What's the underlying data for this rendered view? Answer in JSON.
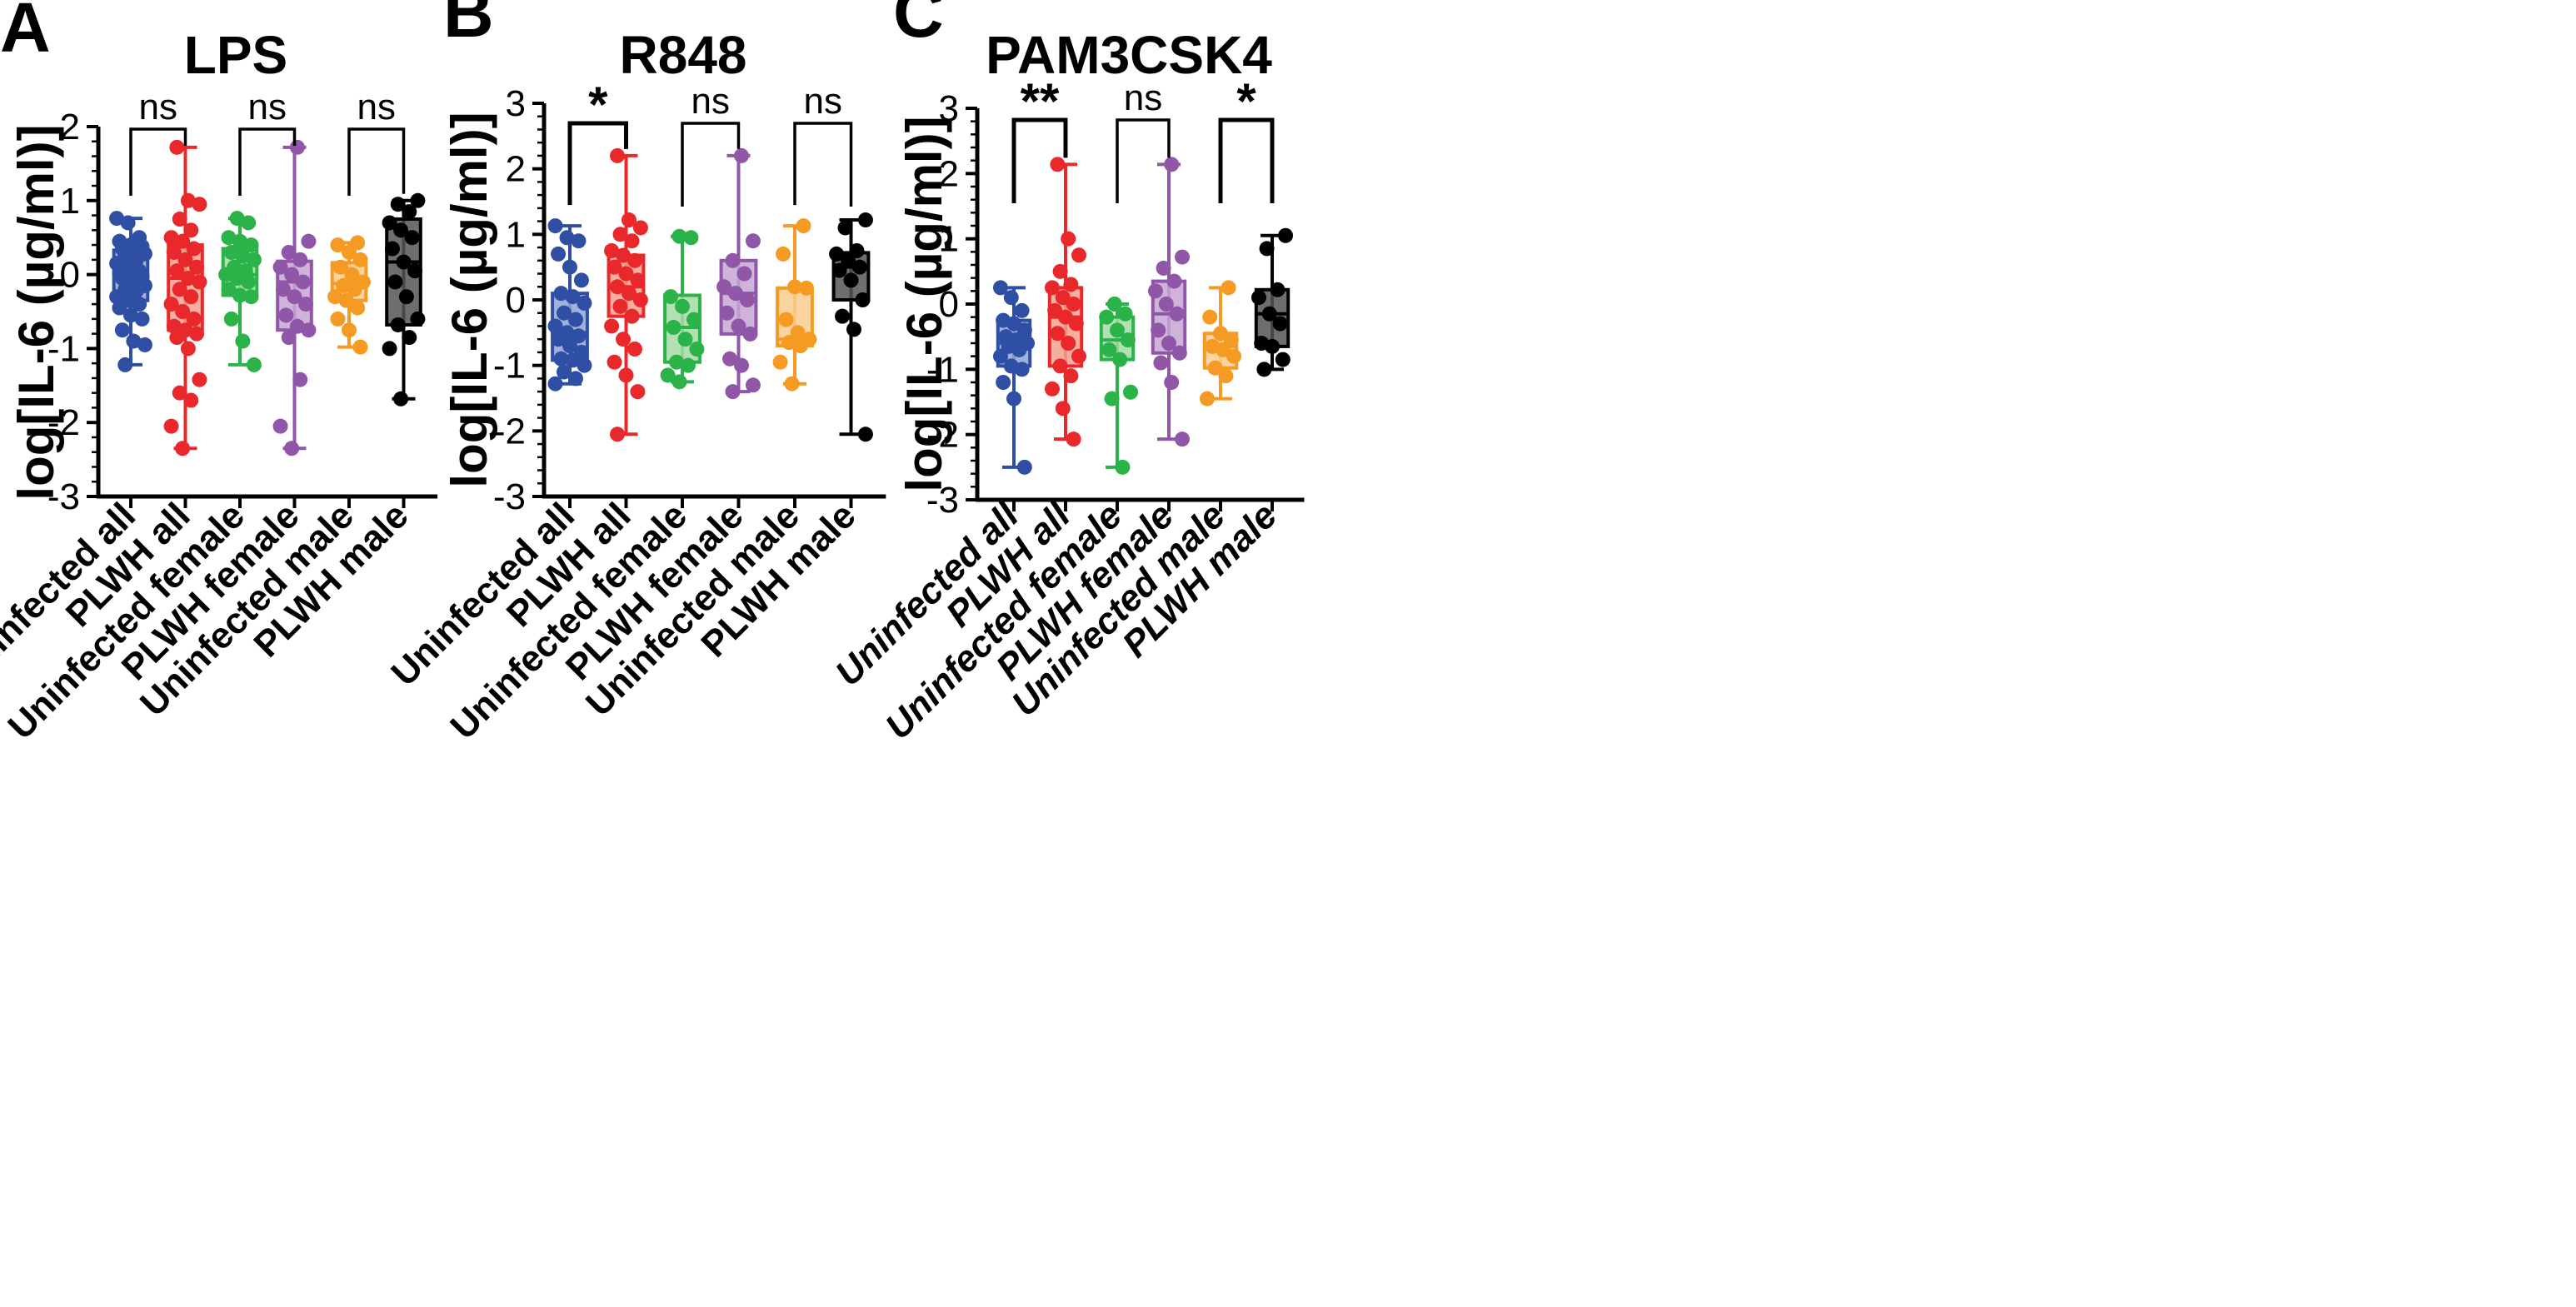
{
  "chart_data": [
    {
      "type": "box",
      "panel_label": "A",
      "title": "LPS",
      "ylabel": "log[IL-6 (µg/ml)]",
      "ylim": [
        -3,
        2
      ],
      "yticks": [
        "-3",
        "-2",
        "-1",
        "0",
        "1",
        "2"
      ],
      "categories": [
        "Uninfected all",
        "PLWH all",
        "Uninfected female",
        "PLWH female",
        "Uninfected male",
        "PLWH male"
      ],
      "italic_categories": false,
      "comparisons": [
        {
          "groups": [
            0,
            1
          ],
          "label": "ns"
        },
        {
          "groups": [
            2,
            3
          ],
          "label": "ns"
        },
        {
          "groups": [
            4,
            5
          ],
          "label": "ns"
        }
      ],
      "series": [
        {
          "name": "Uninfected all",
          "color": "#2e4fa3",
          "fill": "#8fa3d6",
          "min": -1.22,
          "q1": -0.35,
          "median": -0.03,
          "q3": 0.33,
          "max": 0.76,
          "points": [
            0.76,
            0.7,
            0.5,
            0.45,
            0.4,
            0.38,
            0.35,
            0.3,
            0.28,
            0.25,
            0.2,
            0.15,
            0.1,
            0.05,
            0.02,
            0.0,
            -0.03,
            -0.05,
            -0.1,
            -0.15,
            -0.2,
            -0.22,
            -0.3,
            -0.35,
            -0.4,
            -0.45,
            -0.55,
            -0.6,
            -0.75,
            -0.9,
            -0.95,
            -1.22
          ]
        },
        {
          "name": "PLWH all",
          "color": "#e8282b",
          "fill": "#f3a08e",
          "min": -2.35,
          "q1": -0.75,
          "median": -0.05,
          "q3": 0.4,
          "max": 1.72,
          "points": [
            1.72,
            1.0,
            0.95,
            0.75,
            0.6,
            0.5,
            0.45,
            0.35,
            0.3,
            0.2,
            0.1,
            0.05,
            -0.05,
            -0.1,
            -0.2,
            -0.3,
            -0.4,
            -0.5,
            -0.6,
            -0.7,
            -0.75,
            -0.8,
            -0.85,
            -1.0,
            -1.42,
            -1.6,
            -1.7,
            -2.05,
            -2.35
          ]
        },
        {
          "name": "Uninfected female",
          "color": "#2bb34a",
          "fill": "#a6dba5",
          "min": -1.22,
          "q1": -0.28,
          "median": 0.0,
          "q3": 0.35,
          "max": 0.76,
          "points": [
            0.76,
            0.7,
            0.5,
            0.45,
            0.4,
            0.3,
            0.25,
            0.2,
            0.1,
            0.05,
            0.0,
            -0.05,
            -0.1,
            -0.2,
            -0.28,
            -0.3,
            -0.6,
            -0.9,
            -1.22
          ]
        },
        {
          "name": "PLWH female",
          "color": "#9056a8",
          "fill": "#c7a7d3",
          "min": -2.35,
          "q1": -0.75,
          "median": -0.1,
          "q3": 0.18,
          "max": 1.72,
          "points": [
            1.72,
            0.45,
            0.3,
            0.2,
            0.1,
            0.0,
            -0.1,
            -0.2,
            -0.3,
            -0.4,
            -0.55,
            -0.7,
            -0.75,
            -0.85,
            -1.42,
            -2.05,
            -2.35
          ]
        },
        {
          "name": "Uninfected male",
          "color": "#f59a23",
          "fill": "#f9cc8f",
          "min": -0.98,
          "q1": -0.35,
          "median": -0.12,
          "q3": 0.16,
          "max": 0.43,
          "points": [
            0.43,
            0.4,
            0.3,
            0.2,
            0.1,
            0.0,
            -0.1,
            -0.15,
            -0.2,
            -0.3,
            -0.35,
            -0.45,
            -0.6,
            -0.75,
            -0.98
          ]
        },
        {
          "name": "PLWH male",
          "color": "#000000",
          "fill": "#555555",
          "min": -1.68,
          "q1": -0.68,
          "median": 0.17,
          "q3": 0.75,
          "max": 1.0,
          "points": [
            1.0,
            0.95,
            0.85,
            0.7,
            0.6,
            0.5,
            0.35,
            0.17,
            0.05,
            -0.1,
            -0.3,
            -0.6,
            -0.68,
            -0.85,
            -1.0,
            -1.68
          ]
        }
      ]
    },
    {
      "type": "box",
      "panel_label": "B",
      "title": "R848",
      "ylabel": "log[IL-6 (µg/ml)]",
      "ylim": [
        -3,
        3
      ],
      "yticks": [
        "-3",
        "-2",
        "-1",
        "0",
        "1",
        "2",
        "3"
      ],
      "categories": [
        "Uninfected all",
        "PLWH all",
        "Uninfected female",
        "PLWH female",
        "Uninfected male",
        "PLWH male"
      ],
      "italic_categories": false,
      "comparisons": [
        {
          "groups": [
            0,
            1
          ],
          "label": "*"
        },
        {
          "groups": [
            2,
            3
          ],
          "label": "ns"
        },
        {
          "groups": [
            4,
            5
          ],
          "label": "ns"
        }
      ],
      "series": [
        {
          "name": "Uninfected all",
          "color": "#2e4fa3",
          "fill": "#8fa3d6",
          "min": -1.28,
          "q1": -0.92,
          "median": -0.5,
          "q3": 0.1,
          "max": 1.13,
          "points": [
            1.13,
            0.95,
            0.9,
            0.7,
            0.5,
            0.3,
            0.1,
            0.05,
            -0.05,
            -0.2,
            -0.3,
            -0.4,
            -0.5,
            -0.55,
            -0.6,
            -0.7,
            -0.8,
            -0.9,
            -0.92,
            -1.0,
            -1.1,
            -1.2,
            -1.28
          ]
        },
        {
          "name": "PLWH all",
          "color": "#e8282b",
          "fill": "#f3a08e",
          "min": -2.05,
          "q1": -0.25,
          "median": 0.2,
          "q3": 0.68,
          "max": 2.2,
          "points": [
            2.2,
            1.22,
            1.1,
            1.0,
            0.9,
            0.75,
            0.68,
            0.6,
            0.5,
            0.4,
            0.3,
            0.2,
            0.1,
            0.0,
            -0.1,
            -0.25,
            -0.4,
            -0.6,
            -0.75,
            -0.95,
            -1.15,
            -1.4,
            -2.05
          ]
        },
        {
          "name": "Uninfected female",
          "color": "#2bb34a",
          "fill": "#a6dba5",
          "min": -1.25,
          "q1": -0.95,
          "median": -0.42,
          "q3": 0.07,
          "max": 0.97,
          "points": [
            0.97,
            0.95,
            0.05,
            -0.1,
            -0.3,
            -0.42,
            -0.6,
            -0.75,
            -0.95,
            -1.0,
            -1.15,
            -1.25
          ]
        },
        {
          "name": "PLWH female",
          "color": "#9056a8",
          "fill": "#c7a7d3",
          "min": -1.4,
          "q1": -0.52,
          "median": 0.1,
          "q3": 0.6,
          "max": 2.2,
          "points": [
            2.2,
            0.9,
            0.6,
            0.4,
            0.2,
            0.1,
            0.0,
            -0.2,
            -0.4,
            -0.52,
            -0.9,
            -1.0,
            -1.3,
            -1.4
          ]
        },
        {
          "name": "Uninfected male",
          "color": "#f59a23",
          "fill": "#f9cc8f",
          "min": -1.28,
          "q1": -0.7,
          "median": -0.6,
          "q3": 0.18,
          "max": 1.13,
          "points": [
            1.13,
            0.7,
            0.2,
            0.18,
            -0.3,
            -0.5,
            -0.6,
            -0.65,
            -0.7,
            -0.95,
            -1.28
          ]
        },
        {
          "name": "PLWH male",
          "color": "#000000",
          "fill": "#555555",
          "min": -2.05,
          "q1": 0.0,
          "median": 0.5,
          "q3": 0.72,
          "max": 1.22,
          "points": [
            1.22,
            1.1,
            0.75,
            0.7,
            0.6,
            0.5,
            0.45,
            0.3,
            0.0,
            -0.25,
            -0.45,
            -2.05
          ]
        }
      ]
    },
    {
      "type": "box",
      "panel_label": "C",
      "title": "PAM3CSK4",
      "ylabel": "log[IL-6 (µg/ml)]",
      "ylim": [
        -3,
        3
      ],
      "yticks": [
        "-3",
        "-2",
        "-1",
        "0",
        "1",
        "2",
        "3"
      ],
      "categories": [
        "Uninfected all",
        "PLWH all",
        "Uninfected female",
        "PLWH female",
        "Uninfected male",
        "PLWH male"
      ],
      "italic_categories": true,
      "comparisons": [
        {
          "groups": [
            0,
            1
          ],
          "label": "**"
        },
        {
          "groups": [
            2,
            3
          ],
          "label": "ns"
        },
        {
          "groups": [
            4,
            5
          ],
          "label": "*"
        }
      ],
      "series": [
        {
          "name": "Uninfected all",
          "color": "#2e4fa3",
          "fill": "#8fa3d6",
          "min": -2.5,
          "q1": -0.95,
          "median": -0.6,
          "q3": -0.25,
          "max": 0.25,
          "points": [
            0.25,
            0.1,
            -0.1,
            -0.25,
            -0.3,
            -0.4,
            -0.5,
            -0.55,
            -0.6,
            -0.65,
            -0.7,
            -0.8,
            -0.95,
            -1.0,
            -1.2,
            -1.45,
            -2.5
          ]
        },
        {
          "name": "PLWH all",
          "color": "#e8282b",
          "fill": "#f3a08e",
          "min": -2.07,
          "q1": -0.95,
          "median": -0.2,
          "q3": 0.25,
          "max": 2.14,
          "points": [
            2.14,
            1.0,
            0.75,
            0.5,
            0.3,
            0.25,
            0.1,
            0.0,
            -0.1,
            -0.2,
            -0.3,
            -0.45,
            -0.6,
            -0.8,
            -0.95,
            -1.1,
            -1.3,
            -1.6,
            -2.07
          ]
        },
        {
          "name": "Uninfected female",
          "color": "#2bb34a",
          "fill": "#a6dba5",
          "min": -2.5,
          "q1": -0.85,
          "median": -0.55,
          "q3": -0.2,
          "max": 0.0,
          "points": [
            0.0,
            -0.15,
            -0.2,
            -0.4,
            -0.55,
            -0.7,
            -0.85,
            -1.35,
            -1.45,
            -2.5
          ]
        },
        {
          "name": "PLWH female",
          "color": "#9056a8",
          "fill": "#c7a7d3",
          "min": -2.07,
          "q1": -0.75,
          "median": -0.15,
          "q3": 0.35,
          "max": 2.14,
          "points": [
            2.14,
            0.72,
            0.55,
            0.35,
            0.2,
            0.0,
            -0.15,
            -0.4,
            -0.6,
            -0.75,
            -0.9,
            -1.2,
            -2.07
          ]
        },
        {
          "name": "Uninfected male",
          "color": "#f59a23",
          "fill": "#f9cc8f",
          "min": -1.45,
          "q1": -0.98,
          "median": -0.65,
          "q3": -0.45,
          "max": 0.25,
          "points": [
            0.25,
            -0.2,
            -0.45,
            -0.55,
            -0.65,
            -0.7,
            -0.8,
            -0.98,
            -1.1,
            -1.45
          ]
        },
        {
          "name": "PLWH male",
          "color": "#000000",
          "fill": "#555555",
          "min": -1.0,
          "q1": -0.65,
          "median": -0.15,
          "q3": 0.22,
          "max": 1.05,
          "points": [
            1.05,
            0.85,
            0.22,
            0.1,
            -0.15,
            -0.3,
            -0.6,
            -0.65,
            -0.85,
            -1.0
          ]
        }
      ]
    }
  ]
}
